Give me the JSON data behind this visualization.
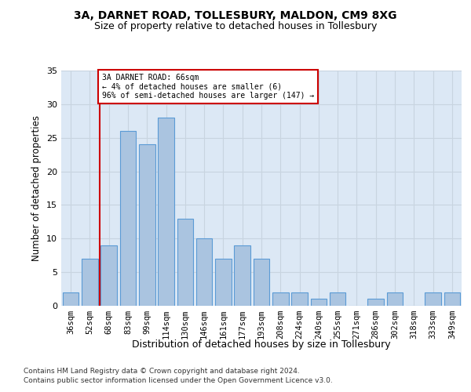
{
  "title1": "3A, DARNET ROAD, TOLLESBURY, MALDON, CM9 8XG",
  "title2": "Size of property relative to detached houses in Tollesbury",
  "xlabel": "Distribution of detached houses by size in Tollesbury",
  "ylabel": "Number of detached properties",
  "categories": [
    "36sqm",
    "52sqm",
    "68sqm",
    "83sqm",
    "99sqm",
    "114sqm",
    "130sqm",
    "146sqm",
    "161sqm",
    "177sqm",
    "193sqm",
    "208sqm",
    "224sqm",
    "240sqm",
    "255sqm",
    "271sqm",
    "286sqm",
    "302sqm",
    "318sqm",
    "333sqm",
    "349sqm"
  ],
  "values": [
    2,
    7,
    9,
    26,
    24,
    28,
    13,
    10,
    7,
    9,
    7,
    2,
    2,
    1,
    2,
    0,
    1,
    2,
    0,
    2,
    2
  ],
  "bar_color": "#aac4e0",
  "bar_edge_color": "#5b9bd5",
  "annotation_text_line1": "3A DARNET ROAD: 66sqm",
  "annotation_text_line2": "← 4% of detached houses are smaller (6)",
  "annotation_text_line3": "96% of semi-detached houses are larger (147) →",
  "box_color": "#ffffff",
  "box_edge_color": "#cc0000",
  "vline_color": "#cc0000",
  "grid_color": "#c8d4e0",
  "background_color": "#dce8f5",
  "footer1": "Contains HM Land Registry data © Crown copyright and database right 2024.",
  "footer2": "Contains public sector information licensed under the Open Government Licence v3.0.",
  "ylim": [
    0,
    35
  ],
  "yticks": [
    0,
    5,
    10,
    15,
    20,
    25,
    30,
    35
  ]
}
